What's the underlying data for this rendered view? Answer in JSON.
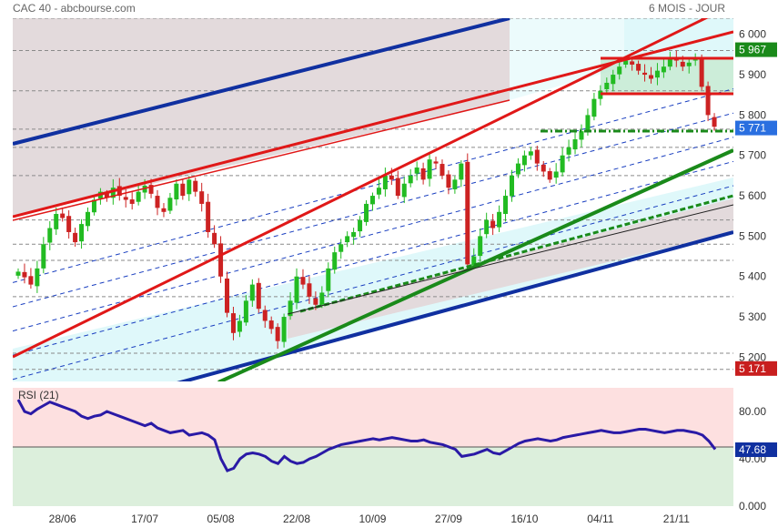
{
  "header": {
    "title": "CAC 40 - abcbourse.com",
    "period": "6 MOIS - JOUR"
  },
  "colors": {
    "up": "#22bb22",
    "down": "#cc2222",
    "channel_fill": "#dff8fa",
    "band_fill": "#e3dadc",
    "rsi_upper": "#fde0e0",
    "rsi_lower": "#dcefdc",
    "rsi_line": "#2a1aa6",
    "tag_green": "#1a8a1a",
    "tag_blue": "#2a6fe0",
    "tag_red": "#c81e1e",
    "tag_navy": "#1030a0"
  },
  "chart_data": [
    {
      "type": "candlestick",
      "title": "CAC 40",
      "ylim": [
        5140,
        6040
      ],
      "yticks": [
        5200,
        5300,
        5400,
        5500,
        5600,
        5700,
        5800,
        5900,
        6000
      ],
      "ytick_labels": [
        "5 200",
        "5 300",
        "5 400",
        "5 500",
        "5 600",
        "5 700",
        "5 800",
        "5 900",
        "6 000"
      ],
      "x_labels": [
        "28/06",
        "17/07",
        "05/08",
        "22/08",
        "10/09",
        "27/09",
        "16/10",
        "04/11",
        "21/11"
      ],
      "x_label_index": [
        7,
        20,
        32,
        44,
        56,
        68,
        80,
        92,
        104
      ],
      "n_sessions": 111,
      "closes": [
        5412,
        5398,
        5380,
        5420,
        5480,
        5520,
        5555,
        5545,
        5510,
        5485,
        5530,
        5560,
        5590,
        5610,
        5595,
        5620,
        5600,
        5590,
        5580,
        5610,
        5625,
        5605,
        5570,
        5560,
        5595,
        5630,
        5600,
        5640,
        5610,
        5580,
        5510,
        5480,
        5400,
        5310,
        5260,
        5290,
        5340,
        5380,
        5320,
        5290,
        5270,
        5240,
        5300,
        5340,
        5400,
        5380,
        5350,
        5330,
        5360,
        5420,
        5460,
        5480,
        5500,
        5510,
        5540,
        5580,
        5600,
        5620,
        5650,
        5640,
        5600,
        5630,
        5650,
        5670,
        5640,
        5690,
        5680,
        5650,
        5620,
        5640,
        5680,
        5430,
        5450,
        5500,
        5540,
        5520,
        5560,
        5600,
        5650,
        5680,
        5700,
        5710,
        5680,
        5660,
        5640,
        5660,
        5700,
        5720,
        5740,
        5760,
        5800,
        5840,
        5860,
        5880,
        5900,
        5920,
        5935,
        5925,
        5910,
        5900,
        5890,
        5910,
        5920,
        5940,
        5935,
        5920,
        5930,
        5940,
        5870,
        5800,
        5771
      ],
      "annotations": {
        "last_price": "5 771",
        "resistance": "5 967",
        "support": "5 171"
      },
      "hlines": [
        6040,
        5960,
        5860,
        5765,
        5720,
        5650,
        5540,
        5480,
        5440,
        5350,
        5210,
        5170
      ]
    },
    {
      "type": "line",
      "title": "RSI (21)",
      "ylim": [
        0,
        100
      ],
      "yticks": [
        0,
        40,
        80
      ],
      "ytick_labels": [
        "0.000",
        "40.00",
        "80.00"
      ],
      "midline": 50,
      "last_value": "47.68",
      "values": [
        90,
        80,
        78,
        82,
        85,
        88,
        86,
        84,
        82,
        80,
        76,
        74,
        76,
        77,
        80,
        78,
        76,
        74,
        72,
        70,
        68,
        70,
        66,
        64,
        62,
        63,
        64,
        60,
        61,
        62,
        60,
        56,
        40,
        30,
        32,
        40,
        44,
        45,
        44,
        42,
        38,
        36,
        42,
        38,
        36,
        37,
        40,
        42,
        45,
        48,
        50,
        52,
        53,
        54,
        55,
        56,
        57,
        56,
        57,
        58,
        57,
        56,
        55,
        55,
        56,
        54,
        53,
        52,
        50,
        48,
        42,
        43,
        44,
        46,
        48,
        45,
        44,
        47,
        50,
        53,
        55,
        56,
        57,
        56,
        55,
        56,
        58,
        59,
        60,
        61,
        62,
        63,
        64,
        63,
        62,
        62,
        63,
        64,
        65,
        65,
        64,
        63,
        62,
        63,
        64,
        64,
        63,
        62,
        60,
        55,
        48
      ]
    }
  ]
}
